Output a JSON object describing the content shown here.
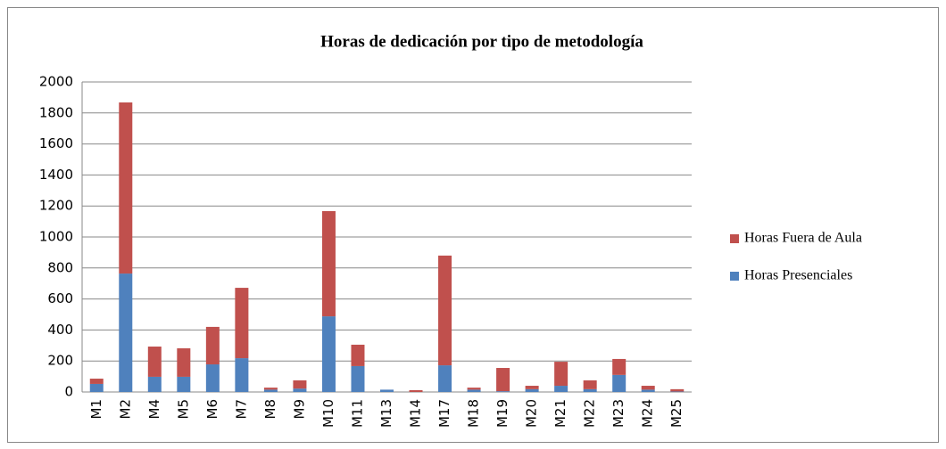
{
  "chart_data": {
    "type": "stacked_bar",
    "title": "Horas de dedicación por tipo de metodología",
    "categories": [
      "M1",
      "M2",
      "M4",
      "M5",
      "M6",
      "M7",
      "M8",
      "M9",
      "M10",
      "M11",
      "M13",
      "M14",
      "M17",
      "M18",
      "M19",
      "M20",
      "M21",
      "M22",
      "M23",
      "M24",
      "M25"
    ],
    "series": [
      {
        "name": "Horas Presenciales",
        "color": "#4f81bd",
        "values": [
          52,
          764,
          98,
          98,
          178,
          218,
          15,
          22,
          488,
          167,
          15,
          0,
          172,
          15,
          5,
          18,
          40,
          18,
          110,
          15,
          3
        ]
      },
      {
        "name": "Horas Fuera de Aula",
        "color": "#c0504d",
        "values": [
          34,
          1104,
          195,
          184,
          242,
          454,
          13,
          53,
          679,
          138,
          0,
          12,
          708,
          13,
          150,
          22,
          155,
          57,
          103,
          25,
          15
        ]
      }
    ],
    "ylim": [
      0,
      2000
    ],
    "yticks": [
      0,
      200,
      400,
      600,
      800,
      1000,
      1200,
      1400,
      1600,
      1800,
      2000
    ],
    "grid": true,
    "legend": "right"
  }
}
